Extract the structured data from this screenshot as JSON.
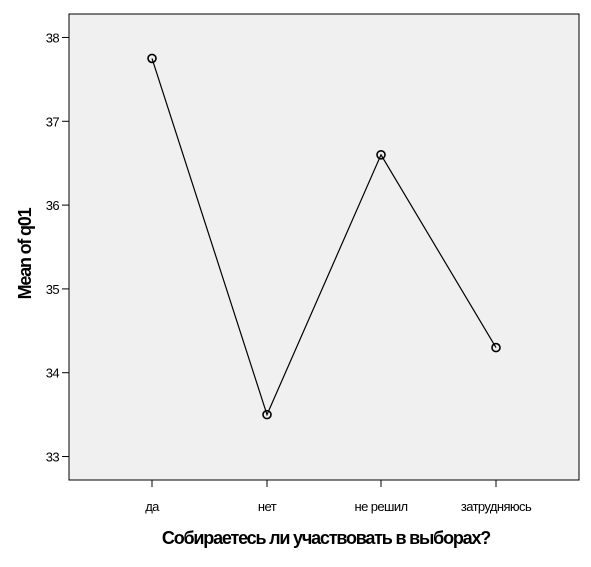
{
  "chart_data": {
    "type": "line",
    "xlabel": "Собираетесь ли участвовать в выборах?",
    "ylabel": "Mean of q01",
    "categories": [
      "да",
      "нет",
      "не решил",
      "затрудняюсь"
    ],
    "series": [
      {
        "values": [
          37.75,
          33.5,
          36.6,
          34.3
        ]
      }
    ],
    "ylim": [
      32.72,
      38.28
    ],
    "yticks": [
      33,
      34,
      35,
      36,
      37,
      38
    ],
    "grid": false,
    "marker": "circle",
    "colors": {
      "plot_background": "#f0f0f0",
      "line": "#000000",
      "axis": "#000000"
    }
  }
}
